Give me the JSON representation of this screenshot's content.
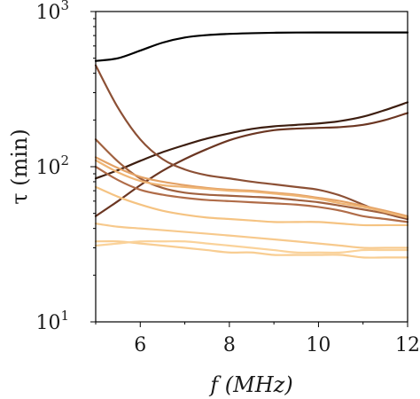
{
  "chart_data": {
    "type": "line",
    "title": "",
    "xlabel": "f (MHz)",
    "ylabel": "τ (min)",
    "xscale": "linear",
    "yscale": "log",
    "xlim": [
      5,
      12
    ],
    "ylim": [
      10,
      1000
    ],
    "xticks": [
      6,
      8,
      10,
      12
    ],
    "yticks": [
      {
        "value": 10,
        "base": "10",
        "exp": "1"
      },
      {
        "value": 100,
        "base": "10",
        "exp": "2"
      },
      {
        "value": 1000,
        "base": "10",
        "exp": "3"
      }
    ],
    "grid": false,
    "legend": "none",
    "x": [
      5,
      5.5,
      6,
      6.5,
      7,
      7.5,
      8,
      8.5,
      9,
      9.5,
      10,
      10.5,
      11,
      11.5,
      12
    ],
    "series": [
      {
        "color": "#000000",
        "values": [
          480,
          500,
          560,
          630,
          680,
          705,
          718,
          725,
          730,
          732,
          733,
          733,
          733,
          733,
          733
        ]
      },
      {
        "color": "#3d1e10",
        "values": [
          84,
          95,
          109,
          124,
          138,
          152,
          164,
          175,
          182,
          186,
          190,
          197,
          210,
          232,
          260
        ]
      },
      {
        "color": "#6b3622",
        "values": [
          48,
          60,
          76,
          94,
          112,
          130,
          148,
          162,
          172,
          176,
          178,
          180,
          186,
          200,
          222
        ]
      },
      {
        "color": "#8c5035",
        "values": [
          450,
          240,
          150,
          112,
          96,
          88,
          84,
          80,
          77,
          74,
          71,
          65,
          57,
          50,
          46
        ]
      },
      {
        "color": "#a0613f",
        "values": [
          150,
          108,
          84,
          73,
          68,
          66,
          65,
          64,
          63,
          61,
          59,
          56,
          53,
          50,
          47
        ]
      },
      {
        "color": "#b06c48",
        "values": [
          100,
          82,
          71,
          66,
          63,
          61,
          60,
          59,
          58,
          57,
          55,
          52,
          48,
          46,
          44
        ]
      },
      {
        "color": "#e3a165",
        "values": [
          115,
          98,
          86,
          80,
          76,
          73,
          71,
          70,
          68,
          66,
          63,
          60,
          56,
          52,
          48
        ]
      },
      {
        "color": "#efb575",
        "values": [
          110,
          92,
          81,
          76,
          74,
          72,
          70,
          69,
          67,
          65,
          62,
          58,
          55,
          51,
          47
        ]
      },
      {
        "color": "#f5c382",
        "values": [
          74,
          64,
          57,
          52,
          49,
          47,
          46,
          45,
          44,
          44,
          44,
          43,
          42,
          42,
          42
        ]
      },
      {
        "color": "#f7c98c",
        "values": [
          43,
          41,
          40,
          39,
          38,
          37,
          36,
          35,
          34,
          33,
          32,
          31,
          30,
          30,
          30
        ]
      },
      {
        "color": "#f8cd92",
        "values": [
          33,
          33,
          32,
          31,
          30,
          29,
          28,
          28,
          27,
          27,
          27,
          27,
          26,
          26,
          26
        ]
      },
      {
        "color": "#fad29a",
        "values": [
          31,
          32,
          33,
          33,
          33,
          32,
          31,
          30,
          29,
          28,
          28,
          28,
          29,
          29,
          29
        ]
      }
    ]
  }
}
